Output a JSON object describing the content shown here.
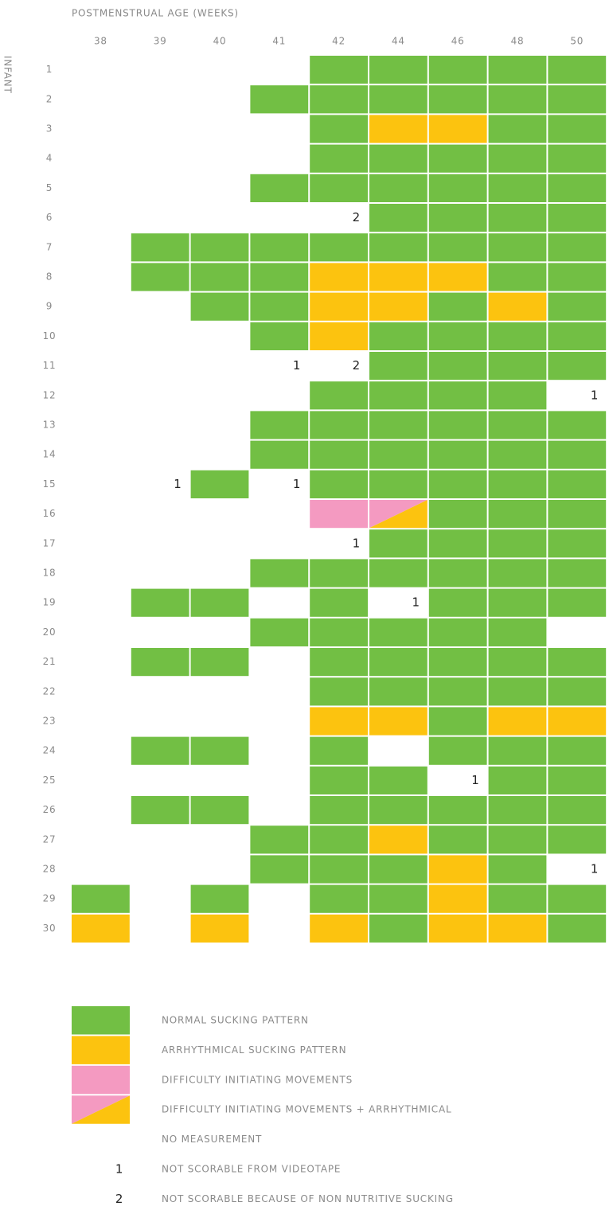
{
  "chart_data": {
    "type": "grid",
    "x_title": "POSTMENSTRUAL AGE (WEEKS)",
    "y_title": "INFANT",
    "columns": [
      38,
      39,
      40,
      41,
      42,
      44,
      46,
      48,
      50
    ],
    "rows": [
      1,
      2,
      3,
      4,
      5,
      6,
      7,
      8,
      9,
      10,
      11,
      12,
      13,
      14,
      15,
      16,
      17,
      18,
      19,
      20,
      21,
      22,
      23,
      24,
      25,
      26,
      27,
      28,
      29,
      30
    ],
    "cells": [
      [
        null,
        null,
        null,
        null,
        "#72bf44",
        "#72bf44",
        "#72bf44",
        "#72bf44",
        "#72bf44"
      ],
      [
        null,
        null,
        null,
        "#72bf44",
        "#72bf44",
        "#72bf44",
        "#72bf44",
        "#72bf44",
        "#72bf44"
      ],
      [
        null,
        null,
        null,
        null,
        "#72bf44",
        "#fcc30f",
        "#fcc30f",
        "#72bf44",
        "#72bf44"
      ],
      [
        null,
        null,
        null,
        null,
        "#72bf44",
        "#72bf44",
        "#72bf44",
        "#72bf44",
        "#72bf44"
      ],
      [
        null,
        null,
        null,
        "#72bf44",
        "#72bf44",
        "#72bf44",
        "#72bf44",
        "#72bf44",
        "#72bf44"
      ],
      [
        null,
        null,
        null,
        null,
        2,
        "#72bf44",
        "#72bf44",
        "#72bf44",
        "#72bf44"
      ],
      [
        null,
        "#72bf44",
        "#72bf44",
        "#72bf44",
        "#72bf44",
        "#72bf44",
        "#72bf44",
        "#72bf44",
        "#72bf44"
      ],
      [
        null,
        "#72bf44",
        "#72bf44",
        "#72bf44",
        "#fcc30f",
        "#fcc30f",
        "#fcc30f",
        "#72bf44",
        "#72bf44"
      ],
      [
        null,
        null,
        "#72bf44",
        "#72bf44",
        "#fcc30f",
        "#fcc30f",
        "#72bf44",
        "#fcc30f",
        "#72bf44"
      ],
      [
        null,
        null,
        null,
        "#72bf44",
        "#fcc30f",
        "#72bf44",
        "#72bf44",
        "#72bf44",
        "#72bf44"
      ],
      [
        null,
        null,
        null,
        1,
        2,
        "#72bf44",
        "#72bf44",
        "#72bf44",
        "#72bf44"
      ],
      [
        null,
        null,
        null,
        null,
        "#72bf44",
        "#72bf44",
        "#72bf44",
        "#72bf44",
        1
      ],
      [
        null,
        null,
        null,
        "#72bf44",
        "#72bf44",
        "#72bf44",
        "#72bf44",
        "#72bf44",
        "#72bf44"
      ],
      [
        null,
        null,
        null,
        "#72bf44",
        "#72bf44",
        "#72bf44",
        "#72bf44",
        "#72bf44",
        "#72bf44"
      ],
      [
        null,
        1,
        "#72bf44",
        1,
        "#72bf44",
        "#72bf44",
        "#72bf44",
        "#72bf44",
        "#72bf44"
      ],
      [
        null,
        null,
        null,
        null,
        "#f49ac1",
        [
          "#f49ac1",
          "#fcc30f"
        ],
        "#72bf44",
        "#72bf44",
        "#72bf44"
      ],
      [
        null,
        null,
        null,
        null,
        1,
        "#72bf44",
        "#72bf44",
        "#72bf44",
        "#72bf44"
      ],
      [
        null,
        null,
        null,
        "#72bf44",
        "#72bf44",
        "#72bf44",
        "#72bf44",
        "#72bf44",
        "#72bf44"
      ],
      [
        null,
        "#72bf44",
        "#72bf44",
        null,
        "#72bf44",
        1,
        "#72bf44",
        "#72bf44",
        "#72bf44"
      ],
      [
        null,
        null,
        null,
        "#72bf44",
        "#72bf44",
        "#72bf44",
        "#72bf44",
        "#72bf44",
        null
      ],
      [
        null,
        "#72bf44",
        "#72bf44",
        null,
        "#72bf44",
        "#72bf44",
        "#72bf44",
        "#72bf44",
        "#72bf44"
      ],
      [
        null,
        null,
        null,
        null,
        "#72bf44",
        "#72bf44",
        "#72bf44",
        "#72bf44",
        "#72bf44"
      ],
      [
        null,
        null,
        null,
        null,
        "#fcc30f",
        "#fcc30f",
        "#72bf44",
        "#fcc30f",
        "#fcc30f"
      ],
      [
        null,
        "#72bf44",
        "#72bf44",
        null,
        "#72bf44",
        null,
        "#72bf44",
        "#72bf44",
        "#72bf44"
      ],
      [
        null,
        null,
        null,
        null,
        "#72bf44",
        "#72bf44",
        1,
        "#72bf44",
        "#72bf44"
      ],
      [
        null,
        "#72bf44",
        "#72bf44",
        null,
        "#72bf44",
        "#72bf44",
        "#72bf44",
        "#72bf44",
        "#72bf44"
      ],
      [
        null,
        null,
        null,
        "#72bf44",
        "#72bf44",
        "#fcc30f",
        "#72bf44",
        "#72bf44",
        "#72bf44"
      ],
      [
        null,
        null,
        null,
        "#72bf44",
        "#72bf44",
        "#72bf44",
        "#fcc30f",
        "#72bf44",
        1
      ],
      [
        "#72bf44",
        null,
        "#72bf44",
        null,
        "#72bf44",
        "#72bf44",
        "#fcc30f",
        "#72bf44",
        "#72bf44"
      ],
      [
        "#fcc30f",
        null,
        "#fcc30f",
        null,
        "#fcc30f",
        "#72bf44",
        "#fcc30f",
        "#fcc30f",
        "#72bf44"
      ]
    ],
    "legend": [
      {
        "color": "#72bf44",
        "label": "NORMAL SUCKING PATTERN"
      },
      {
        "color": "#fcc30f",
        "label": "ARRHYTHMICAL SUCKING PATTERN"
      },
      {
        "color": "#f49ac1",
        "label": "DIFFICULTY INITIATING MOVEMENTS"
      },
      {
        "color": [
          "#f49ac1",
          "#fcc30f"
        ],
        "label": "DIFFICULTY INITIATING MOVEMENTS + ARRHYTHMICAL"
      },
      {
        "color": null,
        "label": "NO MEASUREMENT"
      },
      {
        "symbol": 1,
        "label": "NOT SCORABLE FROM VIDEOTAPE"
      },
      {
        "symbol": 2,
        "label": "NOT SCORABLE BECAUSE OF NON NUTRITIVE SUCKING"
      }
    ]
  }
}
